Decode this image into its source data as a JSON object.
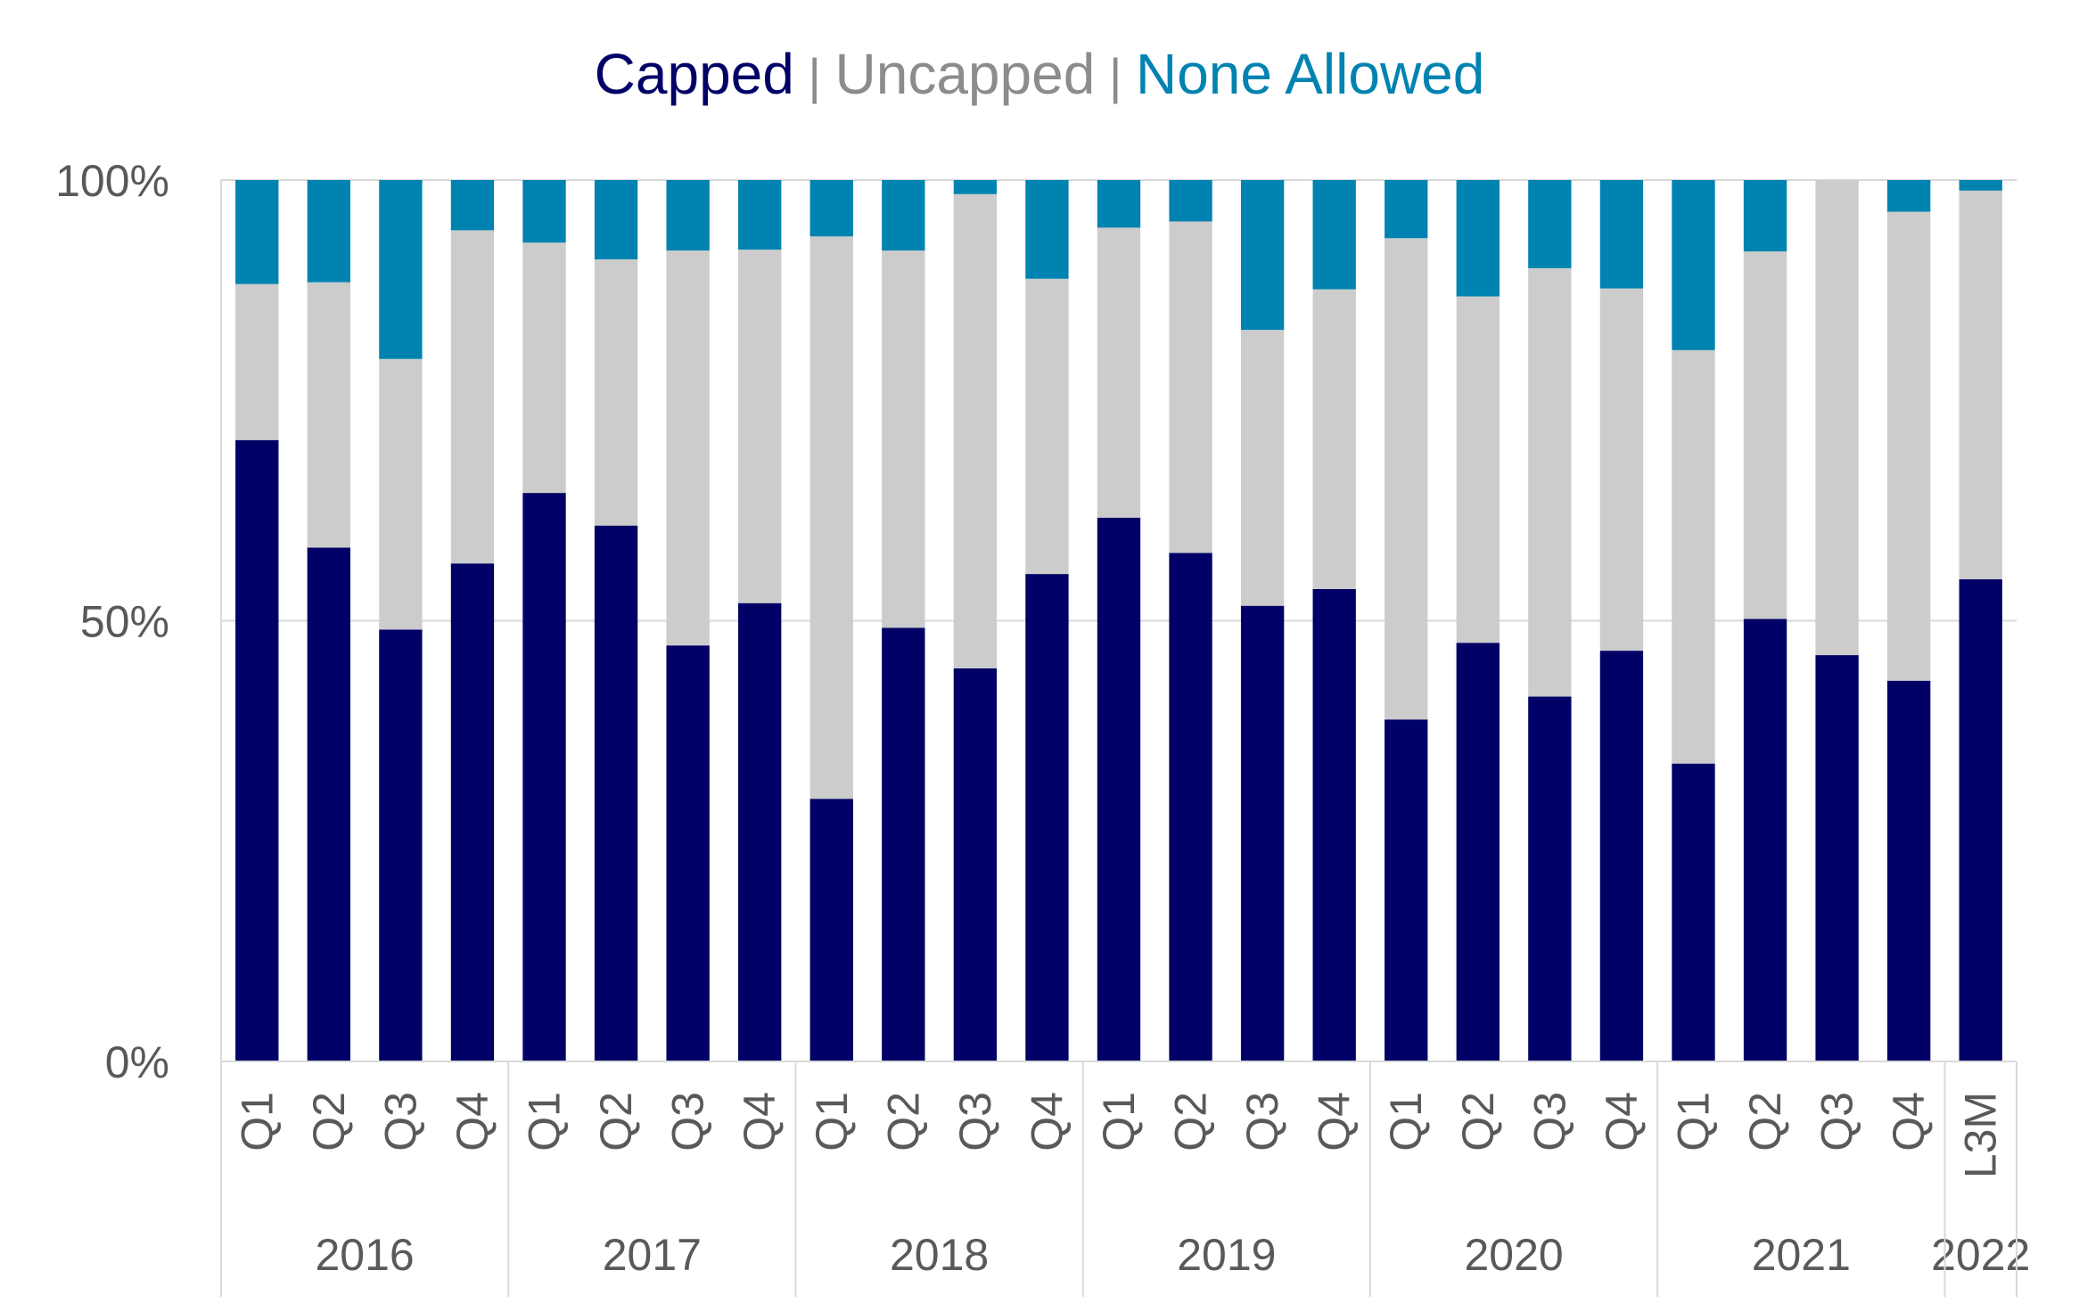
{
  "legend": {
    "items": [
      {
        "label": "Capped",
        "color": "#000066"
      },
      {
        "label": "Uncapped",
        "color": "#8c8c8c"
      },
      {
        "label": "None Allowed",
        "color": "#0083B0"
      }
    ],
    "separator": "|",
    "separator_color": "#8c8c8c"
  },
  "chart_data": {
    "type": "bar",
    "stacked": true,
    "title": "",
    "xlabel": "",
    "ylabel": "",
    "ylim": [
      0,
      100
    ],
    "yticks": [
      {
        "value": 0,
        "label": "0%"
      },
      {
        "value": 50,
        "label": "50%"
      },
      {
        "value": 100,
        "label": "100%"
      }
    ],
    "grid": true,
    "legend_position": "top-center",
    "categories": [
      "Q1",
      "Q2",
      "Q3",
      "Q4",
      "Q1",
      "Q2",
      "Q3",
      "Q4",
      "Q1",
      "Q2",
      "Q3",
      "Q4",
      "Q1",
      "Q2",
      "Q3",
      "Q4",
      "Q1",
      "Q2",
      "Q3",
      "Q4",
      "Q1",
      "Q2",
      "Q3",
      "Q4",
      "L3M"
    ],
    "groups": [
      {
        "label": "2016",
        "count": 4
      },
      {
        "label": "2017",
        "count": 4
      },
      {
        "label": "2018",
        "count": 4
      },
      {
        "label": "2019",
        "count": 4
      },
      {
        "label": "2020",
        "count": 4
      },
      {
        "label": "2021",
        "count": 4
      },
      {
        "label": "2022",
        "count": 1
      }
    ],
    "series": [
      {
        "name": "Capped",
        "color": "#000066",
        "values": [
          70.5,
          58.3,
          49.0,
          56.5,
          64.5,
          60.8,
          47.2,
          52.0,
          29.8,
          49.2,
          44.6,
          55.3,
          61.7,
          57.7,
          51.7,
          53.6,
          38.8,
          47.5,
          41.4,
          46.6,
          33.8,
          50.2,
          46.1,
          43.2,
          54.7
        ]
      },
      {
        "name": "Uncapped",
        "color": "#cccccc",
        "values": [
          17.7,
          30.1,
          30.7,
          37.8,
          28.4,
          30.2,
          44.8,
          40.1,
          63.8,
          42.8,
          53.8,
          33.5,
          32.9,
          37.6,
          31.3,
          34.0,
          54.6,
          39.3,
          48.6,
          41.1,
          46.9,
          41.7,
          53.9,
          53.2,
          44.1
        ]
      },
      {
        "name": "None Allowed",
        "color": "#0083B0",
        "values": [
          11.8,
          11.6,
          20.3,
          5.7,
          7.1,
          9.0,
          8.0,
          7.9,
          6.4,
          8.0,
          1.6,
          11.2,
          5.4,
          4.7,
          17.0,
          12.4,
          6.6,
          13.2,
          10.0,
          12.3,
          19.3,
          8.1,
          0.0,
          3.6,
          1.2
        ]
      }
    ]
  }
}
